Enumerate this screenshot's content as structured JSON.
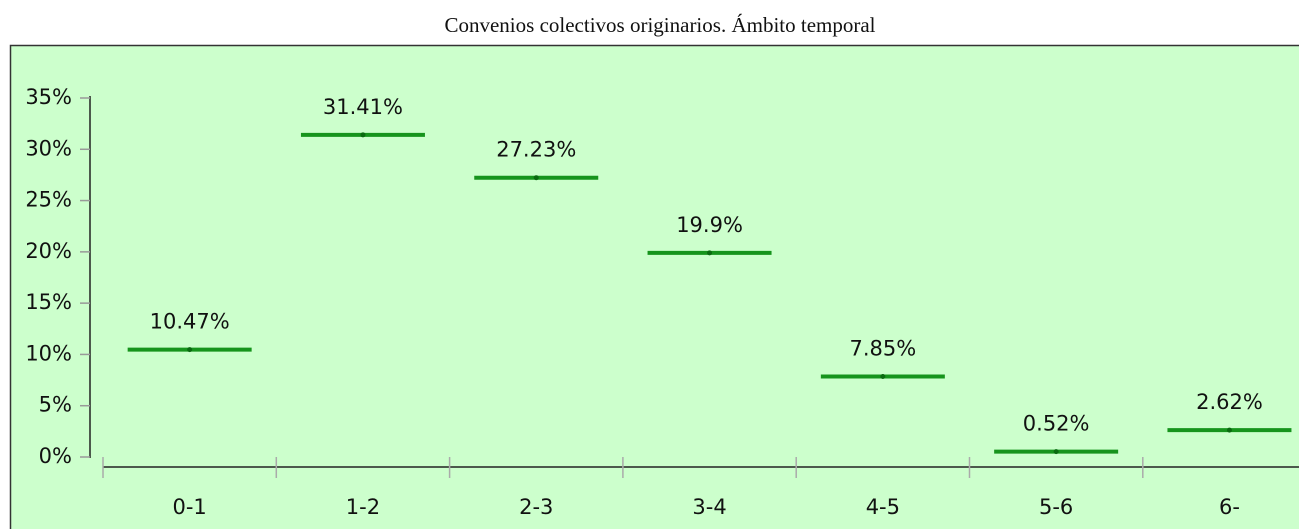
{
  "chart_data": {
    "type": "dash",
    "title": "Convenios colectivos originarios. Ámbito temporal",
    "categories": [
      "0-1",
      "1-2",
      "2-3",
      "3-4",
      "4-5",
      "5-6",
      "6-"
    ],
    "values": [
      10.47,
      31.41,
      27.23,
      19.9,
      7.85,
      0.52,
      2.62
    ],
    "value_labels": [
      "10.47%",
      "31.41%",
      "27.23%",
      "19.9%",
      "7.85%",
      "0.52%",
      "2.62%"
    ],
    "color": "#16941c",
    "ylim": [
      0,
      35
    ],
    "yticks": [
      {
        "value": 0,
        "label": "0%"
      },
      {
        "value": 5,
        "label": "5%"
      },
      {
        "value": 10,
        "label": "10%"
      },
      {
        "value": 15,
        "label": "15%"
      },
      {
        "value": 20,
        "label": "20%"
      },
      {
        "value": 25,
        "label": "25%"
      },
      {
        "value": 30,
        "label": "30%"
      },
      {
        "value": 35,
        "label": "35%"
      }
    ]
  }
}
